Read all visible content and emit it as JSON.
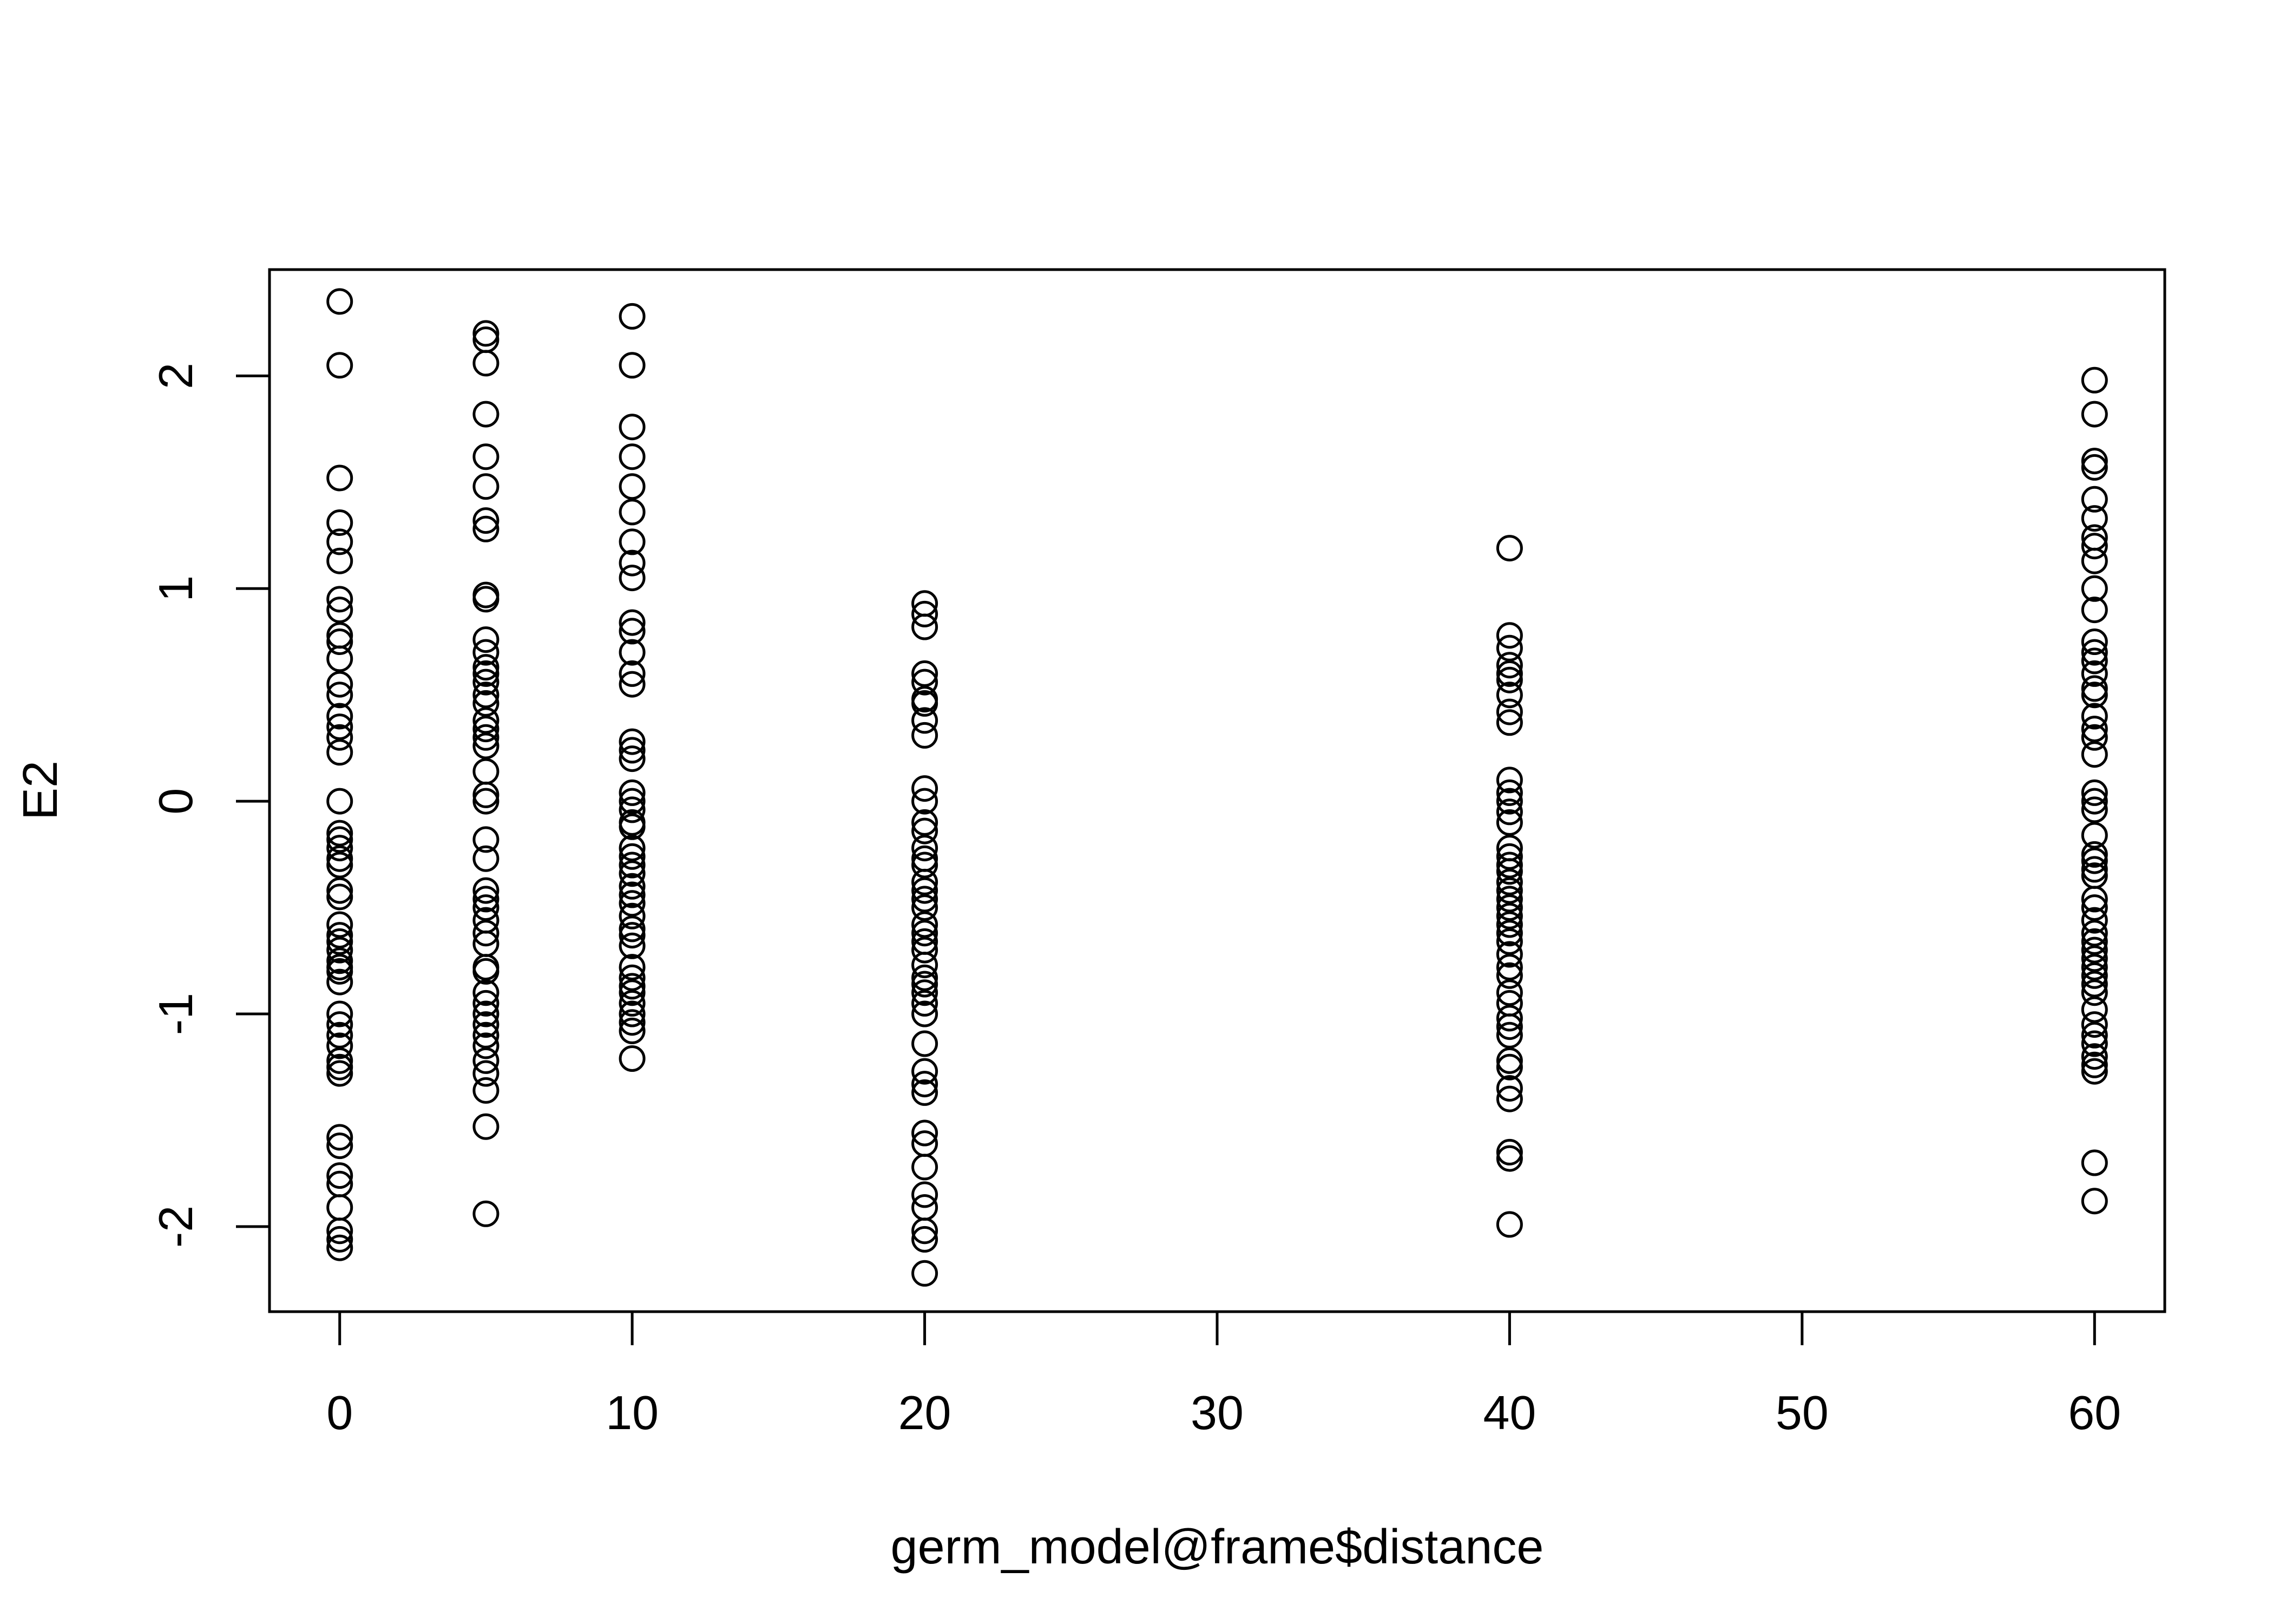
{
  "chart_data": {
    "type": "scatter",
    "title": "",
    "xlabel": "germ_model@frame$distance",
    "ylabel": "E2",
    "xlim": [
      -2.4,
      62.4
    ],
    "ylim": [
      -2.4,
      2.5
    ],
    "xticks": [
      0,
      10,
      20,
      30,
      40,
      50,
      60
    ],
    "yticks": [
      -2,
      -1,
      0,
      1,
      2
    ],
    "xtick_labels": [
      "0",
      "10",
      "20",
      "30",
      "40",
      "50",
      "60"
    ],
    "ytick_labels": [
      "-2",
      "-1",
      "0",
      "1",
      "2"
    ],
    "grid": false,
    "legend": "none",
    "marker": "open-circle",
    "series": [
      {
        "points": [
          [
            0,
            2.35
          ],
          [
            0,
            2.05
          ],
          [
            0,
            1.52
          ],
          [
            0,
            1.31
          ],
          [
            0,
            1.22
          ],
          [
            0,
            1.13
          ],
          [
            0,
            0.95
          ],
          [
            0,
            0.9
          ],
          [
            0,
            0.78
          ],
          [
            0,
            0.75
          ],
          [
            0,
            0.67
          ],
          [
            0,
            0.55
          ],
          [
            0,
            0.5
          ],
          [
            0,
            0.4
          ],
          [
            0,
            0.35
          ],
          [
            0,
            0.3
          ],
          [
            0,
            0.23
          ],
          [
            0,
            0.0
          ],
          [
            0,
            -0.15
          ],
          [
            0,
            -0.18
          ],
          [
            0,
            -0.22
          ],
          [
            0,
            -0.27
          ],
          [
            0,
            -0.3
          ],
          [
            0,
            -0.42
          ],
          [
            0,
            -0.45
          ],
          [
            0,
            -0.58
          ],
          [
            0,
            -0.63
          ],
          [
            0,
            -0.66
          ],
          [
            0,
            -0.7
          ],
          [
            0,
            -0.75
          ],
          [
            0,
            -0.78
          ],
          [
            0,
            -0.8
          ],
          [
            0,
            -0.85
          ],
          [
            0,
            -1.0
          ],
          [
            0,
            -1.05
          ],
          [
            0,
            -1.1
          ],
          [
            0,
            -1.15
          ],
          [
            0,
            -1.22
          ],
          [
            0,
            -1.25
          ],
          [
            0,
            -1.28
          ],
          [
            0,
            -1.58
          ],
          [
            0,
            -1.62
          ],
          [
            0,
            -1.76
          ],
          [
            0,
            -1.8
          ],
          [
            0,
            -1.91
          ],
          [
            0,
            -2.02
          ],
          [
            0,
            -2.06
          ],
          [
            0,
            -2.1
          ],
          [
            5,
            2.2
          ],
          [
            5,
            2.17
          ],
          [
            5,
            2.06
          ],
          [
            5,
            1.82
          ],
          [
            5,
            1.62
          ],
          [
            5,
            1.48
          ],
          [
            5,
            1.32
          ],
          [
            5,
            1.28
          ],
          [
            5,
            0.97
          ],
          [
            5,
            0.95
          ],
          [
            5,
            0.76
          ],
          [
            5,
            0.7
          ],
          [
            5,
            0.63
          ],
          [
            5,
            0.6
          ],
          [
            5,
            0.56
          ],
          [
            5,
            0.5
          ],
          [
            5,
            0.46
          ],
          [
            5,
            0.38
          ],
          [
            5,
            0.34
          ],
          [
            5,
            0.3
          ],
          [
            5,
            0.26
          ],
          [
            5,
            0.14
          ],
          [
            5,
            0.03
          ],
          [
            5,
            0.0
          ],
          [
            5,
            -0.18
          ],
          [
            5,
            -0.27
          ],
          [
            5,
            -0.42
          ],
          [
            5,
            -0.46
          ],
          [
            5,
            -0.5
          ],
          [
            5,
            -0.56
          ],
          [
            5,
            -0.62
          ],
          [
            5,
            -0.67
          ],
          [
            5,
            -0.78
          ],
          [
            5,
            -0.8
          ],
          [
            5,
            -0.9
          ],
          [
            5,
            -0.95
          ],
          [
            5,
            -1.0
          ],
          [
            5,
            -1.05
          ],
          [
            5,
            -1.1
          ],
          [
            5,
            -1.15
          ],
          [
            5,
            -1.22
          ],
          [
            5,
            -1.28
          ],
          [
            5,
            -1.36
          ],
          [
            5,
            -1.53
          ],
          [
            5,
            -1.94
          ],
          [
            10,
            2.28
          ],
          [
            10,
            2.05
          ],
          [
            10,
            1.76
          ],
          [
            10,
            1.62
          ],
          [
            10,
            1.48
          ],
          [
            10,
            1.36
          ],
          [
            10,
            1.22
          ],
          [
            10,
            1.12
          ],
          [
            10,
            1.05
          ],
          [
            10,
            0.84
          ],
          [
            10,
            0.8
          ],
          [
            10,
            0.7
          ],
          [
            10,
            0.6
          ],
          [
            10,
            0.55
          ],
          [
            10,
            0.28
          ],
          [
            10,
            0.24
          ],
          [
            10,
            0.2
          ],
          [
            10,
            0.04
          ],
          [
            10,
            0.0
          ],
          [
            10,
            -0.04
          ],
          [
            10,
            -0.1
          ],
          [
            10,
            -0.12
          ],
          [
            10,
            -0.22
          ],
          [
            10,
            -0.26
          ],
          [
            10,
            -0.3
          ],
          [
            10,
            -0.34
          ],
          [
            10,
            -0.4
          ],
          [
            10,
            -0.44
          ],
          [
            10,
            -0.48
          ],
          [
            10,
            -0.54
          ],
          [
            10,
            -0.6
          ],
          [
            10,
            -0.63
          ],
          [
            10,
            -0.68
          ],
          [
            10,
            -0.78
          ],
          [
            10,
            -0.83
          ],
          [
            10,
            -0.87
          ],
          [
            10,
            -0.9
          ],
          [
            10,
            -0.95
          ],
          [
            10,
            -1.0
          ],
          [
            10,
            -1.04
          ],
          [
            10,
            -1.08
          ],
          [
            10,
            -1.21
          ],
          [
            20,
            0.93
          ],
          [
            20,
            0.88
          ],
          [
            20,
            0.82
          ],
          [
            20,
            0.6
          ],
          [
            20,
            0.56
          ],
          [
            20,
            0.48
          ],
          [
            20,
            0.46
          ],
          [
            20,
            0.38
          ],
          [
            20,
            0.31
          ],
          [
            20,
            0.06
          ],
          [
            20,
            0.0
          ],
          [
            20,
            -0.1
          ],
          [
            20,
            -0.14
          ],
          [
            20,
            -0.22
          ],
          [
            20,
            -0.27
          ],
          [
            20,
            -0.3
          ],
          [
            20,
            -0.38
          ],
          [
            20,
            -0.42
          ],
          [
            20,
            -0.46
          ],
          [
            20,
            -0.5
          ],
          [
            20,
            -0.58
          ],
          [
            20,
            -0.62
          ],
          [
            20,
            -0.66
          ],
          [
            20,
            -0.7
          ],
          [
            20,
            -0.77
          ],
          [
            20,
            -0.83
          ],
          [
            20,
            -0.86
          ],
          [
            20,
            -0.9
          ],
          [
            20,
            -0.95
          ],
          [
            20,
            -1.0
          ],
          [
            20,
            -1.14
          ],
          [
            20,
            -1.27
          ],
          [
            20,
            -1.33
          ],
          [
            20,
            -1.37
          ],
          [
            20,
            -1.56
          ],
          [
            20,
            -1.61
          ],
          [
            20,
            -1.72
          ],
          [
            20,
            -1.85
          ],
          [
            20,
            -1.91
          ],
          [
            20,
            -2.02
          ],
          [
            20,
            -2.06
          ],
          [
            20,
            -2.22
          ],
          [
            40,
            1.19
          ],
          [
            40,
            0.78
          ],
          [
            40,
            0.72
          ],
          [
            40,
            0.64
          ],
          [
            40,
            0.6
          ],
          [
            40,
            0.57
          ],
          [
            40,
            0.5
          ],
          [
            40,
            0.42
          ],
          [
            40,
            0.37
          ],
          [
            40,
            0.1
          ],
          [
            40,
            0.04
          ],
          [
            40,
            0.0
          ],
          [
            40,
            -0.05
          ],
          [
            40,
            -0.1
          ],
          [
            40,
            -0.22
          ],
          [
            40,
            -0.26
          ],
          [
            40,
            -0.3
          ],
          [
            40,
            -0.33
          ],
          [
            40,
            -0.38
          ],
          [
            40,
            -0.42
          ],
          [
            40,
            -0.46
          ],
          [
            40,
            -0.5
          ],
          [
            40,
            -0.54
          ],
          [
            40,
            -0.58
          ],
          [
            40,
            -0.62
          ],
          [
            40,
            -0.66
          ],
          [
            40,
            -0.72
          ],
          [
            40,
            -0.78
          ],
          [
            40,
            -0.82
          ],
          [
            40,
            -0.9
          ],
          [
            40,
            -0.95
          ],
          [
            40,
            -1.02
          ],
          [
            40,
            -1.06
          ],
          [
            40,
            -1.1
          ],
          [
            40,
            -1.22
          ],
          [
            40,
            -1.25
          ],
          [
            40,
            -1.35
          ],
          [
            40,
            -1.4
          ],
          [
            40,
            -1.65
          ],
          [
            40,
            -1.68
          ],
          [
            40,
            -1.99
          ],
          [
            60,
            1.98
          ],
          [
            60,
            1.82
          ],
          [
            60,
            1.6
          ],
          [
            60,
            1.57
          ],
          [
            60,
            1.42
          ],
          [
            60,
            1.33
          ],
          [
            60,
            1.24
          ],
          [
            60,
            1.2
          ],
          [
            60,
            1.13
          ],
          [
            60,
            1.0
          ],
          [
            60,
            0.9
          ],
          [
            60,
            0.75
          ],
          [
            60,
            0.7
          ],
          [
            60,
            0.66
          ],
          [
            60,
            0.6
          ],
          [
            60,
            0.53
          ],
          [
            60,
            0.5
          ],
          [
            60,
            0.4
          ],
          [
            60,
            0.34
          ],
          [
            60,
            0.3
          ],
          [
            60,
            0.22
          ],
          [
            60,
            0.04
          ],
          [
            60,
            0.0
          ],
          [
            60,
            -0.04
          ],
          [
            60,
            -0.16
          ],
          [
            60,
            -0.25
          ],
          [
            60,
            -0.28
          ],
          [
            60,
            -0.32
          ],
          [
            60,
            -0.35
          ],
          [
            60,
            -0.46
          ],
          [
            60,
            -0.5
          ],
          [
            60,
            -0.56
          ],
          [
            60,
            -0.62
          ],
          [
            60,
            -0.66
          ],
          [
            60,
            -0.7
          ],
          [
            60,
            -0.74
          ],
          [
            60,
            -0.78
          ],
          [
            60,
            -0.82
          ],
          [
            60,
            -0.86
          ],
          [
            60,
            -0.9
          ],
          [
            60,
            -0.98
          ],
          [
            60,
            -1.05
          ],
          [
            60,
            -1.1
          ],
          [
            60,
            -1.14
          ],
          [
            60,
            -1.2
          ],
          [
            60,
            -1.24
          ],
          [
            60,
            -1.27
          ],
          [
            60,
            -1.7
          ],
          [
            60,
            -1.88
          ]
        ]
      }
    ],
    "colors": {
      "background": "#ffffff",
      "ink": "#000000"
    }
  }
}
